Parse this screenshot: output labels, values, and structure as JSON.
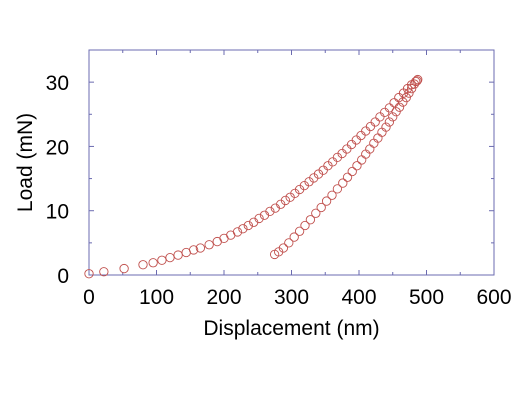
{
  "chart_data": {
    "type": "scatter",
    "xlabel": "Displacement (nm)",
    "ylabel": "Load (mN)",
    "xlim": [
      0,
      600
    ],
    "ylim": [
      0,
      35
    ],
    "xticks": [
      0,
      100,
      200,
      300,
      400,
      500,
      600
    ],
    "yticks": [
      0,
      10,
      20,
      30
    ],
    "xtick_labels": [
      "0",
      "100",
      "200",
      "300",
      "400",
      "500",
      "600"
    ],
    "ytick_labels": [
      "0",
      "10",
      "20",
      "30"
    ],
    "marker": "open-circle",
    "marker_color": "#c0504d",
    "frame_color": "#6b6bb0",
    "grid": false,
    "series": [
      {
        "values": [
          [
            0,
            0.2
          ],
          [
            22,
            0.5
          ],
          [
            52,
            1.0
          ],
          [
            80,
            1.6
          ],
          [
            95,
            1.9
          ],
          [
            108,
            2.3
          ],
          [
            120,
            2.7
          ],
          [
            132,
            3.1
          ],
          [
            144,
            3.5
          ],
          [
            155,
            3.9
          ],
          [
            165,
            4.2
          ],
          [
            178,
            4.7
          ],
          [
            190,
            5.2
          ],
          [
            200,
            5.7
          ],
          [
            210,
            6.2
          ],
          [
            220,
            6.7
          ],
          [
            228,
            7.2
          ],
          [
            236,
            7.7
          ],
          [
            244,
            8.2
          ],
          [
            252,
            8.8
          ],
          [
            260,
            9.3
          ],
          [
            268,
            9.9
          ],
          [
            276,
            10.4
          ],
          [
            284,
            11.0
          ],
          [
            291,
            11.6
          ],
          [
            298,
            12.1
          ],
          [
            305,
            12.7
          ],
          [
            312,
            13.3
          ],
          [
            319,
            13.9
          ],
          [
            326,
            14.5
          ],
          [
            333,
            15.1
          ],
          [
            340,
            15.7
          ],
          [
            347,
            16.3
          ],
          [
            354,
            17.0
          ],
          [
            361,
            17.6
          ],
          [
            368,
            18.3
          ],
          [
            375,
            18.9
          ],
          [
            382,
            19.6
          ],
          [
            389,
            20.3
          ],
          [
            396,
            21.0
          ],
          [
            403,
            21.7
          ],
          [
            410,
            22.4
          ],
          [
            417,
            23.1
          ],
          [
            424,
            23.8
          ],
          [
            431,
            24.6
          ],
          [
            438,
            25.3
          ],
          [
            445,
            26.0
          ],
          [
            452,
            26.8
          ],
          [
            459,
            27.6
          ],
          [
            466,
            28.3
          ],
          [
            472,
            29.0
          ],
          [
            478,
            29.6
          ],
          [
            484,
            30.1
          ],
          [
            487,
            30.4
          ]
        ]
      },
      {
        "values": [
          [
            486,
            30.2
          ],
          [
            482,
            29.7
          ],
          [
            478,
            29.0
          ],
          [
            474,
            28.3
          ],
          [
            470,
            27.6
          ],
          [
            465,
            26.9
          ],
          [
            460,
            26.1
          ],
          [
            455,
            25.4
          ],
          [
            450,
            24.6
          ],
          [
            445,
            23.8
          ],
          [
            440,
            23.0
          ],
          [
            434,
            22.2
          ],
          [
            428,
            21.3
          ],
          [
            422,
            20.5
          ],
          [
            416,
            19.6
          ],
          [
            410,
            18.8
          ],
          [
            404,
            17.9
          ],
          [
            397,
            17.0
          ],
          [
            390,
            16.1
          ],
          [
            383,
            15.2
          ],
          [
            376,
            14.3
          ],
          [
            368,
            13.4
          ],
          [
            360,
            12.4
          ],
          [
            352,
            11.5
          ],
          [
            344,
            10.5
          ],
          [
            336,
            9.6
          ],
          [
            328,
            8.6
          ],
          [
            320,
            7.7
          ],
          [
            312,
            6.8
          ],
          [
            304,
            5.9
          ],
          [
            296,
            5.0
          ],
          [
            288,
            4.2
          ],
          [
            281,
            3.6
          ],
          [
            275,
            3.2
          ]
        ]
      }
    ]
  }
}
